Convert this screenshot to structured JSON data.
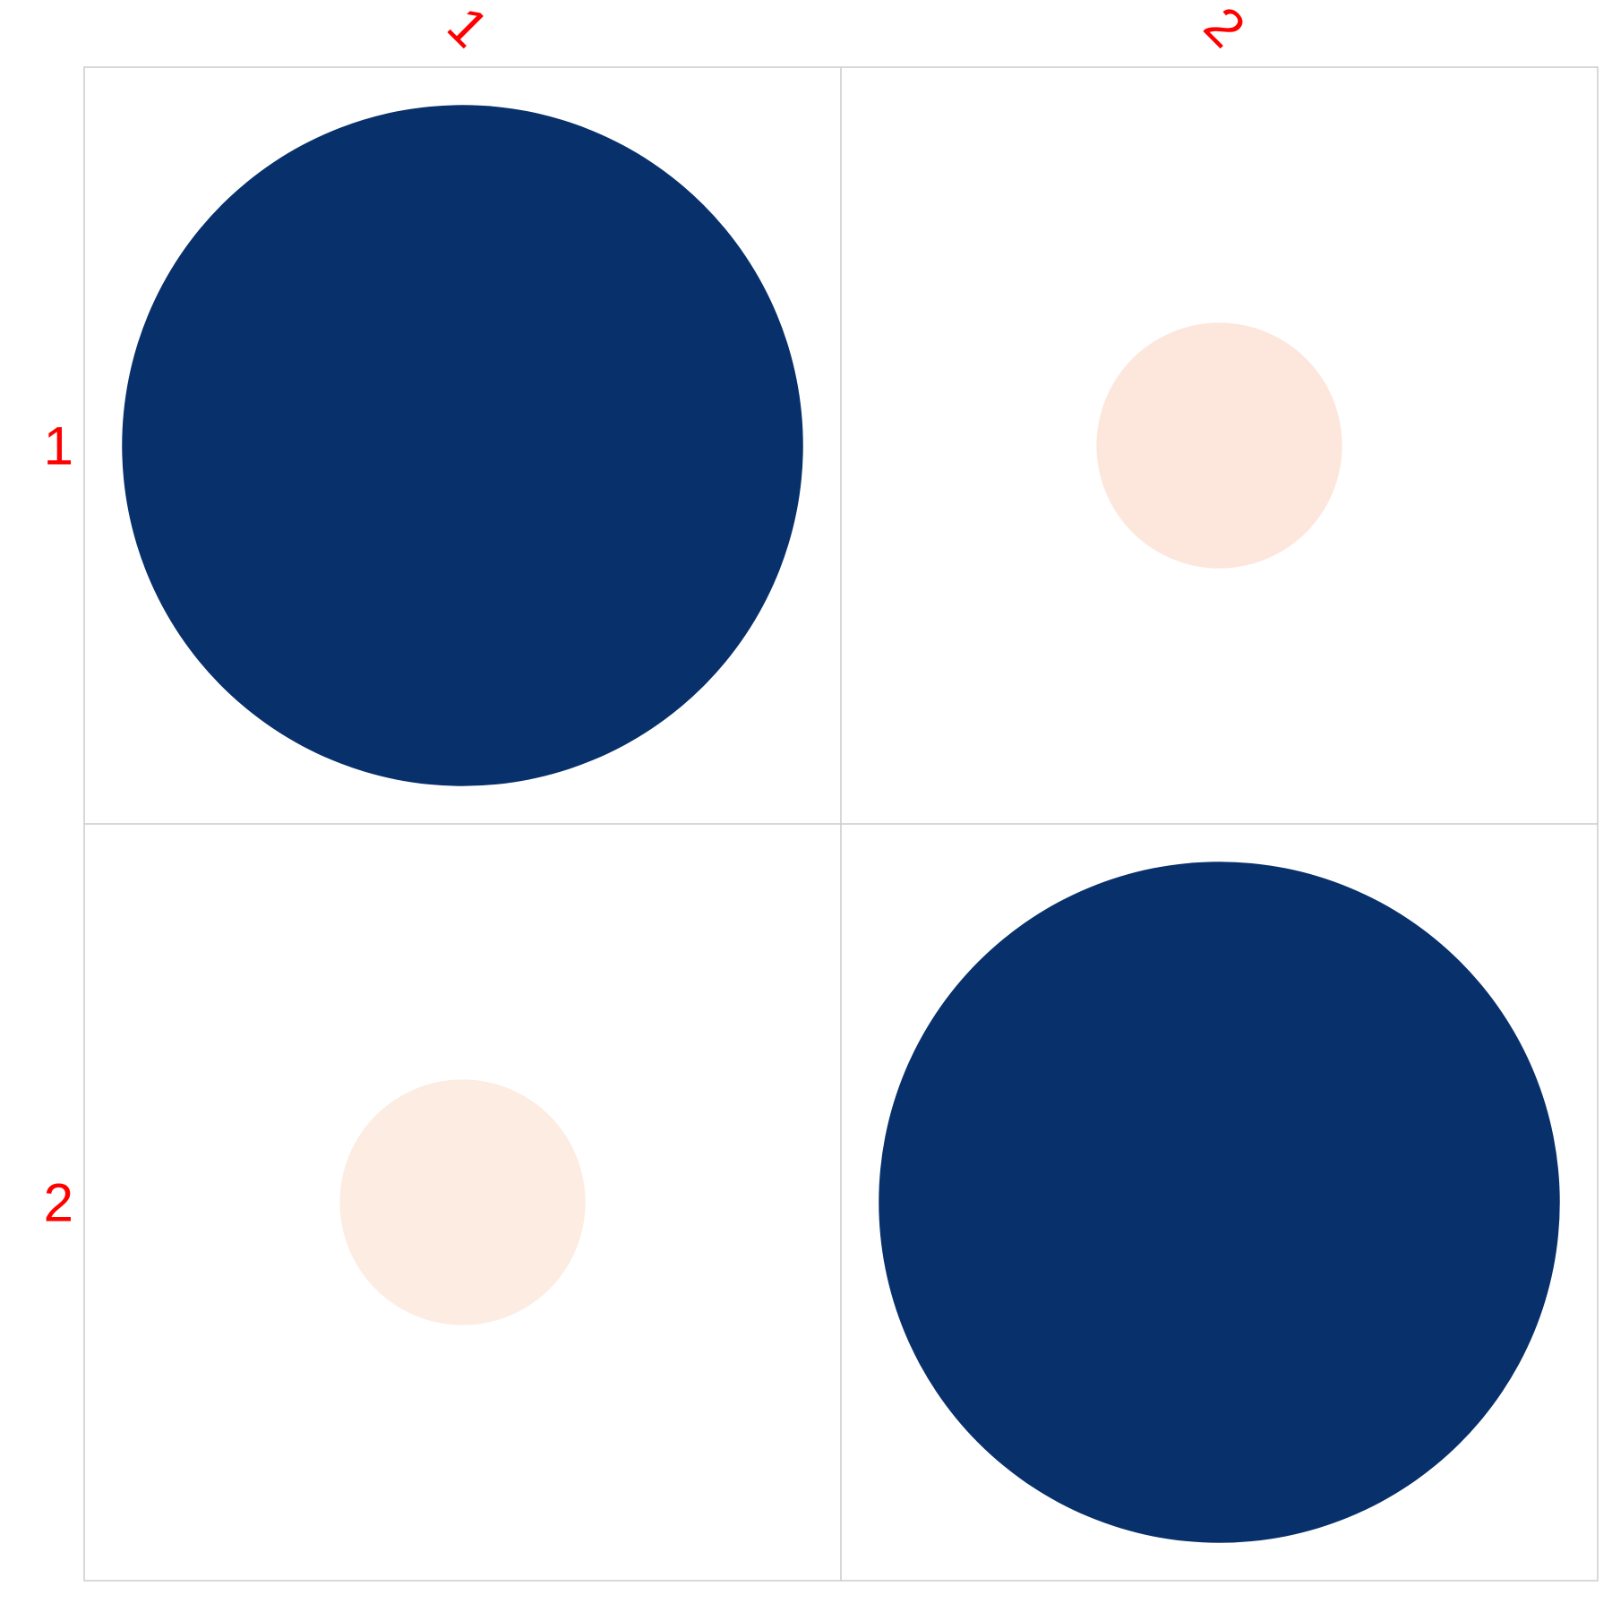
{
  "chart_data": {
    "type": "heatmap",
    "subtype": "correlation-circle-plot",
    "title": "",
    "xlabel": "",
    "ylabel": "",
    "row_labels": [
      "1",
      "2"
    ],
    "col_labels": [
      "1",
      "2"
    ],
    "values": [
      [
        1.0,
        -0.13
      ],
      [
        -0.13,
        1.0
      ]
    ],
    "value_range": [
      -1,
      1
    ],
    "label_color": "#ff0000",
    "grid": true,
    "colors": {
      "strong_positive": "#08306b",
      "weak_negative_r1c2": "#fde6dc",
      "weak_negative_r2c1": "#fcece2"
    }
  }
}
